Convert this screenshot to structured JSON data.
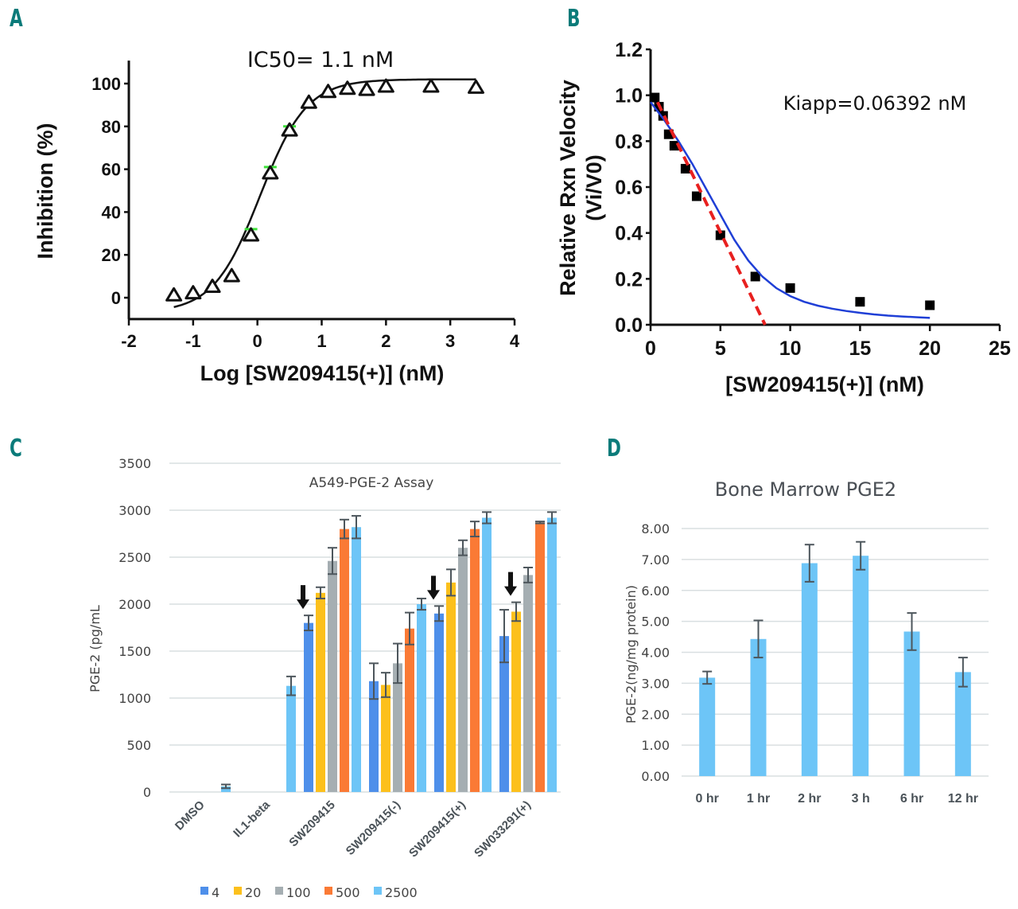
{
  "panels": {
    "a": {
      "letter": "A"
    },
    "b": {
      "letter": "B"
    },
    "c": {
      "letter": "C"
    },
    "d": {
      "letter": "D"
    }
  },
  "chart_data": [
    {
      "id": "A",
      "type": "scatter",
      "annotation": "IC50= 1.1 nM",
      "xlabel": "Log [SW209415(+)] (nM)",
      "ylabel": "Inhibition (%)",
      "xlim": [
        -2,
        4
      ],
      "ylim": [
        -10,
        110
      ],
      "xticks": [
        "-2",
        "-1",
        "0",
        "1",
        "2",
        "3",
        "4"
      ],
      "yticks": [
        "0",
        "20",
        "40",
        "60",
        "80",
        "100"
      ],
      "series": [
        {
          "name": "data",
          "marker": "triangle",
          "x": [
            -1.3,
            -1.0,
            -0.7,
            -0.4,
            -0.1,
            0.2,
            0.5,
            0.8,
            1.1,
            1.4,
            1.7,
            2.0,
            2.7,
            3.4
          ],
          "y": [
            1,
            2,
            5,
            10,
            29,
            58,
            78,
            91,
            96,
            97.5,
            97,
            98.5,
            98.5,
            98
          ],
          "error_upper": [
            null,
            null,
            null,
            null,
            32,
            61,
            80,
            null,
            null,
            null,
            null,
            null,
            null,
            null
          ]
        },
        {
          "name": "fit",
          "type": "line",
          "model": "sigmoid",
          "bottom": -7,
          "top": 102,
          "log_ic50": 0.04,
          "hill": 1.2,
          "x_range": [
            -1.3,
            3.4
          ]
        }
      ],
      "grid": false
    },
    {
      "id": "B",
      "type": "scatter",
      "annotation": "Kiapp=0.06392 nM",
      "xlabel": "[SW209415(+)] (nM)",
      "ylabel": "Relative Rxn Velocity (Vi/V0)",
      "ylabel_lines": [
        "Relative Rxn Velocity",
        "(Vi/V0)"
      ],
      "xlim": [
        0,
        25
      ],
      "ylim": [
        0,
        1.2
      ],
      "xticks": [
        "0",
        "5",
        "10",
        "15",
        "20",
        "25"
      ],
      "yticks": [
        "0.0",
        "0.2",
        "0.4",
        "0.6",
        "0.8",
        "1.0",
        "1.2"
      ],
      "series": [
        {
          "name": "data",
          "marker": "square",
          "x": [
            0.3,
            0.6,
            0.9,
            1.3,
            1.7,
            2.5,
            3.3,
            5,
            7.5,
            10,
            15,
            20
          ],
          "y": [
            0.99,
            0.95,
            0.91,
            0.83,
            0.78,
            0.68,
            0.56,
            0.39,
            0.21,
            0.16,
            0.1,
            0.085
          ]
        },
        {
          "name": "Morrison fit",
          "type": "line",
          "color": "#1f3fd6",
          "x": [
            0,
            1,
            2,
            3,
            4,
            5,
            6,
            7,
            8,
            9,
            10,
            11,
            12,
            13,
            14,
            15,
            16,
            17,
            18,
            19,
            20
          ],
          "y": [
            0.97,
            0.89,
            0.8,
            0.7,
            0.59,
            0.48,
            0.37,
            0.28,
            0.21,
            0.16,
            0.125,
            0.1,
            0.083,
            0.07,
            0.06,
            0.052,
            0.045,
            0.04,
            0.036,
            0.033,
            0.03
          ]
        },
        {
          "name": "initial slope",
          "type": "dashed-line",
          "color": "#e8201f",
          "x": [
            0.5,
            8.2
          ],
          "y": [
            0.97,
            0.0
          ]
        }
      ],
      "grid": false
    },
    {
      "id": "C",
      "type": "bar",
      "title": "A549-PGE-2 Assay",
      "ylabel": "PGE-2 (pg/mL",
      "ylim": [
        0,
        3500
      ],
      "yticks": [
        "0",
        "500",
        "1000",
        "1500",
        "2000",
        "2500",
        "3000",
        "3500"
      ],
      "categories": [
        "DMSO",
        "IL1-beta",
        "SW209415",
        "SW209415(-)",
        "SW209415(+)",
        "SW033291(+)"
      ],
      "legend_position": "bottom",
      "series": [
        {
          "name": "4",
          "color": "#4e8fea",
          "values": [
            null,
            null,
            1800,
            1180,
            1900,
            1660
          ],
          "errors": [
            null,
            null,
            80,
            190,
            80,
            280
          ]
        },
        {
          "name": "20",
          "color": "#fcc01c",
          "values": [
            null,
            null,
            2120,
            1140,
            2230,
            1920
          ],
          "errors": [
            null,
            null,
            60,
            130,
            140,
            100
          ]
        },
        {
          "name": "100",
          "color": "#a5aeb2",
          "values": [
            null,
            null,
            2460,
            1370,
            2600,
            2310
          ],
          "errors": [
            null,
            null,
            140,
            210,
            80,
            80
          ]
        },
        {
          "name": "500",
          "color": "#fa7a35",
          "values": [
            null,
            null,
            2800,
            1740,
            2800,
            2870
          ],
          "errors": [
            null,
            null,
            100,
            170,
            80,
            10
          ]
        },
        {
          "name": "2500",
          "color": "#6dc5f7",
          "values": [
            60,
            1130,
            2820,
            2000,
            2920,
            2920
          ],
          "errors": [
            20,
            100,
            120,
            60,
            60,
            60
          ]
        }
      ],
      "arrows_on": [
        {
          "category": "SW209415",
          "series": "4"
        },
        {
          "category": "SW209415(+)",
          "series": "4"
        },
        {
          "category": "SW033291(+)",
          "series": "20"
        }
      ],
      "grid": true
    },
    {
      "id": "D",
      "type": "bar",
      "title": "Bone Marrow PGE2",
      "ylabel": "PGE-2(ng/mg protein)",
      "ylim": [
        0,
        8
      ],
      "yticks": [
        "0.00",
        "1.00",
        "2.00",
        "3.00",
        "4.00",
        "5.00",
        "6.00",
        "7.00",
        "8.00"
      ],
      "categories": [
        "0 hr",
        "1 hr",
        "2 hr",
        "3 h",
        "6 hr",
        "12 hr"
      ],
      "series": [
        {
          "name": "PGE-2",
          "color": "#6dc5f7",
          "values": [
            3.18,
            4.43,
            6.88,
            7.12,
            4.67,
            3.36
          ],
          "errors": [
            0.2,
            0.6,
            0.6,
            0.45,
            0.6,
            0.47
          ]
        }
      ],
      "grid": true
    }
  ]
}
